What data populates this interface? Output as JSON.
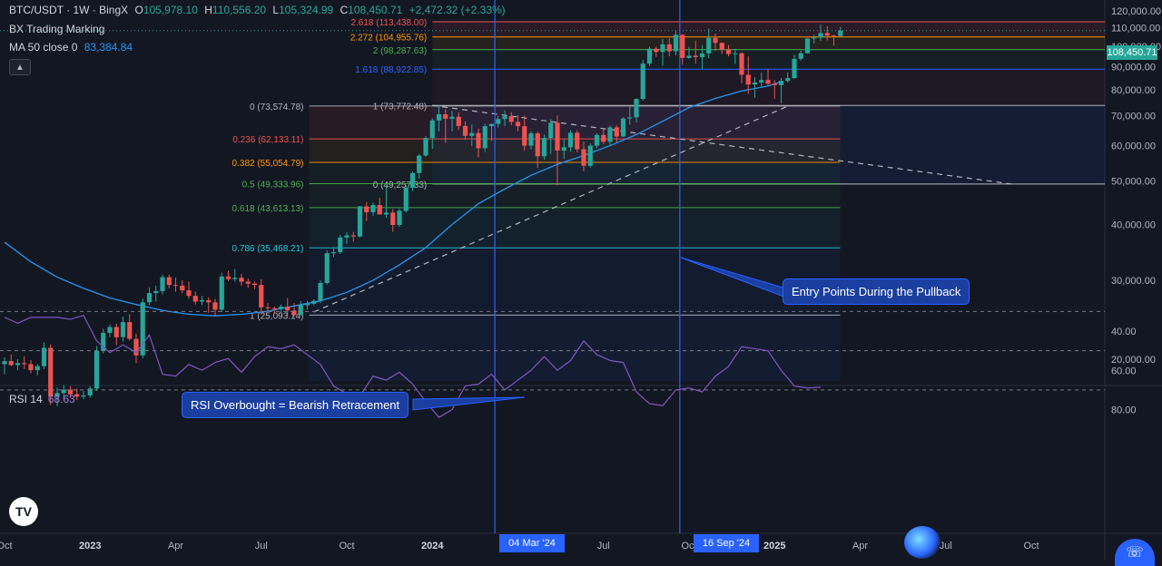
{
  "header": {
    "symbol": "BTC/USDT · 1W · BingX",
    "o_label": "O",
    "o": "105,978.10",
    "h_label": "H",
    "h": "110,556.20",
    "l_label": "L",
    "l": "105,324.99",
    "c_label": "C",
    "c": "108,450.71",
    "change": "+2,472.32 (+2.33%)",
    "indicator1": "BX Trading Marking",
    "ma_label": "MA 50 close 0",
    "ma_value": "83,384.84"
  },
  "rsi": {
    "label": "RSI 14",
    "value": "68.63"
  },
  "callouts": {
    "entry": "Entry Points During the Pullback",
    "rsi": "RSI Overbought = Bearish Retracement"
  },
  "time_badges": {
    "first": "04 Mar '24",
    "second": "16 Sep '24"
  },
  "price_badge": "108,450.71",
  "colors": {
    "background": "#131722",
    "up": "#26a69a",
    "down": "#ef5350",
    "ma": "#2196f3",
    "rsi": "#7e57c2",
    "highlight": "#2962ff"
  },
  "icons": [
    "tradingview-logo-icon",
    "collapse-chevron-icon",
    "assistant-orb-icon",
    "headset-help-icon"
  ],
  "chart_data": {
    "type": "candlestick",
    "price_axis": {
      "ticks": [
        "120,000.00",
        "110,000.00",
        "100,000.00",
        "90,000.00",
        "80,000.00",
        "70,000.00",
        "60,000.00",
        "50,000.00",
        "40,000.00",
        "30,000.00",
        "20,000.00"
      ],
      "tick_values": [
        120000,
        110000,
        100000,
        90000,
        80000,
        70000,
        60000,
        50000,
        40000,
        30000,
        20000
      ],
      "ylim": [
        15000,
        121000
      ]
    },
    "time_axis": {
      "labels": [
        "Oct",
        "2023",
        "Apr",
        "Jul",
        "Oct",
        "2024",
        "Apr",
        "Jul",
        "Oct",
        "2025",
        "Apr",
        "Jul",
        "Oct"
      ],
      "weeks": [
        0,
        13,
        26,
        39,
        52,
        65,
        78,
        91,
        104,
        117,
        130,
        143,
        156
      ]
    },
    "rsi_axis": {
      "ticks": [
        "80.00",
        "60.00",
        "40.00"
      ],
      "tick_values": [
        80,
        60,
        40
      ],
      "bands": [
        70,
        50,
        30
      ],
      "ylim": [
        27,
        90
      ]
    },
    "candles": [
      [
        19500,
        20200,
        18500,
        19800
      ],
      [
        19800,
        20500,
        19300,
        19400
      ],
      [
        19400,
        20000,
        18900,
        19600
      ],
      [
        19600,
        20300,
        19000,
        19500
      ],
      [
        19500,
        19900,
        18600,
        18900
      ],
      [
        18900,
        19500,
        18400,
        19300
      ],
      [
        19300,
        21800,
        19000,
        21200
      ],
      [
        21200,
        21600,
        15800,
        16500
      ],
      [
        16500,
        17300,
        15700,
        16800
      ],
      [
        16800,
        17500,
        16300,
        17100
      ],
      [
        17100,
        17400,
        16400,
        16700
      ],
      [
        16700,
        17200,
        16200,
        16500
      ],
      [
        16500,
        17000,
        16300,
        16600
      ],
      [
        16600,
        17400,
        16400,
        17200
      ],
      [
        17200,
        21400,
        17000,
        20900
      ],
      [
        20900,
        23400,
        20600,
        22900
      ],
      [
        22900,
        23900,
        22400,
        23600
      ],
      [
        23600,
        24000,
        21500,
        22400
      ],
      [
        22400,
        24900,
        21900,
        24200
      ],
      [
        24200,
        25200,
        22000,
        22200
      ],
      [
        22200,
        22800,
        19600,
        20400
      ],
      [
        20400,
        27300,
        20100,
        26800
      ],
      [
        26800,
        28900,
        26400,
        28100
      ],
      [
        28100,
        29200,
        26900,
        28400
      ],
      [
        28400,
        30900,
        27900,
        30500
      ],
      [
        30500,
        30900,
        28800,
        29300
      ],
      [
        29300,
        30400,
        28300,
        29200
      ],
      [
        29200,
        30000,
        28100,
        28500
      ],
      [
        28500,
        29800,
        27300,
        27700
      ],
      [
        27700,
        28300,
        26500,
        26900
      ],
      [
        26900,
        27700,
        26400,
        27100
      ],
      [
        27100,
        27500,
        25400,
        26800
      ],
      [
        26800,
        27300,
        24900,
        25800
      ],
      [
        25800,
        31200,
        25500,
        30600
      ],
      [
        30600,
        31500,
        29900,
        30200
      ],
      [
        30200,
        31800,
        29800,
        30400
      ],
      [
        30400,
        31000,
        29200,
        29800
      ],
      [
        29800,
        30300,
        28900,
        29500
      ],
      [
        29500,
        29800,
        28700,
        29300
      ],
      [
        29300,
        30200,
        25200,
        26100
      ],
      [
        26100,
        26700,
        25600,
        26000
      ],
      [
        26000,
        26200,
        25300,
        25900
      ],
      [
        25900,
        26500,
        25400,
        26200
      ],
      [
        26200,
        27400,
        25000,
        25700
      ],
      [
        25700,
        26700,
        24900,
        25100
      ],
      [
        25100,
        27000,
        25000,
        26400
      ],
      [
        26400,
        27000,
        25800,
        26600
      ],
      [
        26600,
        27200,
        26400,
        27000
      ],
      [
        27000,
        30000,
        26700,
        29600
      ],
      [
        29600,
        35000,
        29400,
        34500
      ],
      [
        34500,
        35600,
        33800,
        34700
      ],
      [
        34700,
        37900,
        34400,
        37400
      ],
      [
        37400,
        38400,
        36200,
        37800
      ],
      [
        37800,
        38500,
        36600,
        37600
      ],
      [
        37600,
        44000,
        37400,
        43900
      ],
      [
        43900,
        44900,
        40700,
        42600
      ],
      [
        42600,
        44700,
        41800,
        44200
      ],
      [
        44200,
        45900,
        42400,
        42100
      ],
      [
        42100,
        49000,
        41400,
        42500
      ],
      [
        42500,
        43300,
        38500,
        39900
      ],
      [
        39900,
        43400,
        39500,
        42900
      ],
      [
        42900,
        48900,
        42600,
        48300
      ],
      [
        48300,
        52500,
        47500,
        52100
      ],
      [
        52100,
        57500,
        50600,
        57000
      ],
      [
        57000,
        63000,
        56600,
        62400
      ],
      [
        62400,
        69000,
        59000,
        68300
      ],
      [
        68300,
        73700,
        64500,
        70500
      ],
      [
        70500,
        72400,
        60800,
        68900
      ],
      [
        68900,
        71700,
        64500,
        69600
      ],
      [
        69600,
        71200,
        65000,
        66400
      ],
      [
        66400,
        68000,
        61800,
        63100
      ],
      [
        63100,
        66900,
        59800,
        64000
      ],
      [
        64000,
        65500,
        56500,
        59200
      ],
      [
        59200,
        67200,
        58000,
        66300
      ],
      [
        66300,
        67200,
        61400,
        67100
      ],
      [
        67100,
        69800,
        65800,
        68800
      ],
      [
        68800,
        71900,
        66300,
        69800
      ],
      [
        69800,
        71300,
        66700,
        67800
      ],
      [
        67800,
        70200,
        64600,
        66300
      ],
      [
        66300,
        70000,
        58400,
        60000
      ],
      [
        60000,
        64600,
        58800,
        63900
      ],
      [
        63900,
        64400,
        53500,
        56800
      ],
      [
        56800,
        63500,
        55800,
        62400
      ],
      [
        62400,
        68800,
        57500,
        67500
      ],
      [
        67500,
        70000,
        49000,
        58500
      ],
      [
        58500,
        61900,
        56000,
        59500
      ],
      [
        59500,
        65000,
        58200,
        64100
      ],
      [
        64100,
        64900,
        58000,
        58900
      ],
      [
        58900,
        61200,
        52600,
        54100
      ],
      [
        54100,
        60700,
        53600,
        60000
      ],
      [
        60000,
        64000,
        59300,
        63400
      ],
      [
        63400,
        65300,
        60500,
        61200
      ],
      [
        61200,
        66500,
        60200,
        65900
      ],
      [
        65900,
        66600,
        61000,
        62900
      ],
      [
        62900,
        69400,
        62700,
        69000
      ],
      [
        69000,
        73600,
        66800,
        69400
      ],
      [
        69400,
        76500,
        67600,
        76300
      ],
      [
        76300,
        93300,
        75600,
        91500
      ],
      [
        91500,
        99800,
        90400,
        98800
      ],
      [
        98800,
        99700,
        94700,
        97200
      ],
      [
        97200,
        103900,
        90600,
        101000
      ],
      [
        101000,
        104100,
        95000,
        97500
      ],
      [
        97500,
        108300,
        95400,
        106100
      ],
      [
        106100,
        106400,
        91000,
        94200
      ],
      [
        94200,
        99700,
        93800,
        95300
      ],
      [
        95300,
        102800,
        91500,
        94600
      ],
      [
        94600,
        100600,
        89000,
        96400
      ],
      [
        96400,
        109500,
        94100,
        104400
      ],
      [
        104400,
        106800,
        97700,
        101800
      ],
      [
        101800,
        102000,
        96200,
        98300
      ],
      [
        98300,
        100600,
        95000,
        96100
      ],
      [
        96100,
        98800,
        91300,
        96500
      ],
      [
        96500,
        97000,
        82600,
        86400
      ],
      [
        86400,
        95000,
        78300,
        82200
      ],
      [
        82200,
        85300,
        76700,
        83000
      ],
      [
        83000,
        87400,
        81300,
        84100
      ],
      [
        84100,
        88800,
        81700,
        82500
      ],
      [
        82500,
        84000,
        76300,
        81900
      ],
      [
        81900,
        85000,
        74500,
        83700
      ],
      [
        83700,
        87500,
        83000,
        84900
      ],
      [
        84900,
        95800,
        84600,
        93800
      ],
      [
        93800,
        97800,
        92900,
        96500
      ],
      [
        96500,
        104300,
        96300,
        104100
      ],
      [
        104100,
        106100,
        101400,
        104600
      ],
      [
        104600,
        111900,
        102800,
        107100
      ],
      [
        107100,
        110900,
        103100,
        105700
      ],
      [
        105700,
        106100,
        100300,
        105400
      ],
      [
        105400,
        110600,
        105300,
        108450
      ]
    ],
    "ma50": [
      [
        0,
        36500
      ],
      [
        4,
        33000
      ],
      [
        8,
        30500
      ],
      [
        12,
        28800
      ],
      [
        16,
        27400
      ],
      [
        20,
        26500
      ],
      [
        24,
        25700
      ],
      [
        28,
        25200
      ],
      [
        32,
        25000
      ],
      [
        36,
        25200
      ],
      [
        40,
        25600
      ],
      [
        44,
        26300
      ],
      [
        48,
        27000
      ],
      [
        52,
        28200
      ],
      [
        56,
        30000
      ],
      [
        60,
        32500
      ],
      [
        64,
        35500
      ],
      [
        68,
        40000
      ],
      [
        72,
        44500
      ],
      [
        76,
        48000
      ],
      [
        80,
        51500
      ],
      [
        84,
        54500
      ],
      [
        88,
        57000
      ],
      [
        92,
        60000
      ],
      [
        96,
        63500
      ],
      [
        100,
        68000
      ],
      [
        104,
        73000
      ],
      [
        108,
        76500
      ],
      [
        112,
        79500
      ],
      [
        116,
        81500
      ],
      [
        118,
        83384
      ]
    ],
    "rsi": [
      [
        0,
        33
      ],
      [
        2,
        36
      ],
      [
        4,
        33
      ],
      [
        6,
        33
      ],
      [
        8,
        33
      ],
      [
        10,
        34
      ],
      [
        12,
        32
      ],
      [
        14,
        45
      ],
      [
        16,
        51
      ],
      [
        18,
        47
      ],
      [
        20,
        51
      ],
      [
        22,
        42
      ],
      [
        24,
        62
      ],
      [
        26,
        63
      ],
      [
        28,
        57
      ],
      [
        30,
        60
      ],
      [
        32,
        56
      ],
      [
        34,
        54
      ],
      [
        36,
        61
      ],
      [
        38,
        53
      ],
      [
        40,
        48
      ],
      [
        42,
        49
      ],
      [
        44,
        47
      ],
      [
        46,
        52
      ],
      [
        48,
        57
      ],
      [
        50,
        68
      ],
      [
        52,
        72
      ],
      [
        54,
        73
      ],
      [
        56,
        63
      ],
      [
        58,
        65
      ],
      [
        60,
        61
      ],
      [
        62,
        67
      ],
      [
        64,
        76
      ],
      [
        66,
        84
      ],
      [
        68,
        80
      ],
      [
        70,
        68
      ],
      [
        72,
        67
      ],
      [
        74,
        62
      ],
      [
        76,
        70
      ],
      [
        78,
        65
      ],
      [
        80,
        60
      ],
      [
        82,
        53
      ],
      [
        84,
        60
      ],
      [
        86,
        55
      ],
      [
        88,
        45
      ],
      [
        90,
        52
      ],
      [
        92,
        55
      ],
      [
        94,
        56
      ],
      [
        96,
        71
      ],
      [
        98,
        77
      ],
      [
        100,
        78
      ],
      [
        102,
        70
      ],
      [
        104,
        69
      ],
      [
        106,
        71
      ],
      [
        108,
        63
      ],
      [
        110,
        58
      ],
      [
        112,
        48
      ],
      [
        114,
        49
      ],
      [
        116,
        50
      ],
      [
        118,
        60
      ],
      [
        120,
        68
      ],
      [
        122,
        69
      ],
      [
        124,
        68.63
      ]
    ],
    "fib_right": {
      "start_week": 65,
      "levels": [
        {
          "label": "2.618 (113,438.00)",
          "price": 113438,
          "color": "#ef5350"
        },
        {
          "label": "2.272 (104,955.76)",
          "price": 104955.76,
          "color": "#ff9800"
        },
        {
          "label": "2 (98,287.63)",
          "price": 98287.63,
          "color": "#4caf50"
        },
        {
          "label": "1.618 (88,922.85)",
          "price": 88922.85,
          "color": "#2962ff"
        },
        {
          "label": "1 (73,772.48)",
          "price": 73772.48,
          "color": "#b2b5be"
        },
        {
          "label": "0 (49,257.33)",
          "price": 49257.33,
          "color": "#b2b5be"
        }
      ]
    },
    "fib_left": {
      "start_week": 50,
      "end_week": 118,
      "levels": [
        {
          "label": "0 (73,574.78)",
          "price": 73574.78,
          "color": "#b2b5be"
        },
        {
          "label": "0.236 (62,133.11)",
          "price": 62133.11,
          "color": "#ef5350"
        },
        {
          "label": "0.382 (55,054.79)",
          "price": 55054.79,
          "color": "#ff9800"
        },
        {
          "label": "0.5 (49,333.96)",
          "price": 49333.96,
          "color": "#4caf50"
        },
        {
          "label": "0.618 (43,613.13)",
          "price": 43613.13,
          "color": "#4caf50"
        },
        {
          "label": "0.786 (35,468.21)",
          "price": 35468.21,
          "color": "#26c6da"
        },
        {
          "label": "1 (25,093.14)",
          "price": 25093.14,
          "color": "#b2b5be"
        }
      ]
    },
    "trendlines": [
      {
        "from": [
          47,
          25500
        ],
        "to": [
          119,
          73500
        ]
      },
      {
        "from": [
          65,
          73772
        ],
        "to": [
          153,
          49257
        ]
      }
    ],
    "vlines_weeks": [
      74.5,
      102.6
    ]
  }
}
